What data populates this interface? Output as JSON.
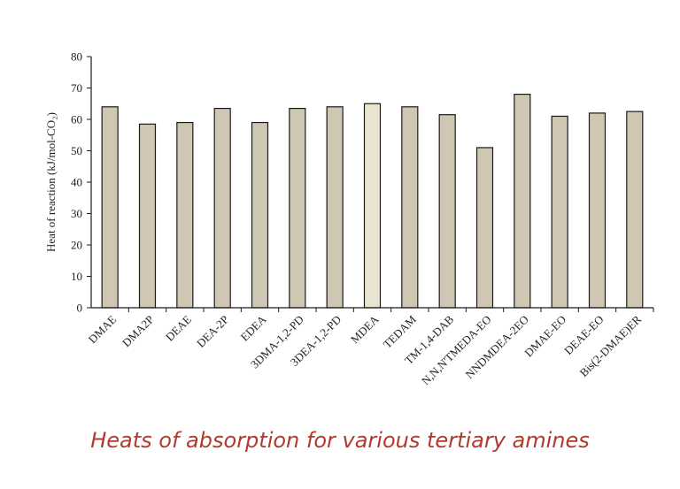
{
  "caption": "Heats of absorption for various tertiary amines",
  "colors": {
    "bar_fill": "#cfc6b4",
    "bar_fill_highlight": "#e9e4d0",
    "bar_stroke": "#1a1a1a",
    "axis": "#1a1a1a",
    "caption": "#b03a2e"
  },
  "chart_data": {
    "type": "bar",
    "title": "",
    "xlabel": "",
    "ylabel": "Heat of reaction (kJ/mol-CO₂)",
    "ylim": [
      0,
      80
    ],
    "yticks": [
      0,
      10,
      20,
      30,
      40,
      50,
      60,
      70,
      80
    ],
    "grid": false,
    "categories": [
      "DMAE",
      "DMA2P",
      "DEAE",
      "DEA-2P",
      "EDEA",
      "3DMA-1,2-PD",
      "3DEA-1,2-PD",
      "MDEA",
      "TEDAM",
      "TM-1,4-DAB",
      "N,N,N'TMEDA-EO",
      "NNDMDEA-2EO",
      "DMAE-EO",
      "DEAE-EO",
      "Bis(2-DMAE)ER"
    ],
    "values": [
      64,
      58.5,
      59,
      63.5,
      59,
      63.5,
      64,
      65,
      64,
      61.5,
      51,
      68,
      61,
      62,
      62.5
    ],
    "highlighted_categories": [
      "MDEA"
    ]
  }
}
